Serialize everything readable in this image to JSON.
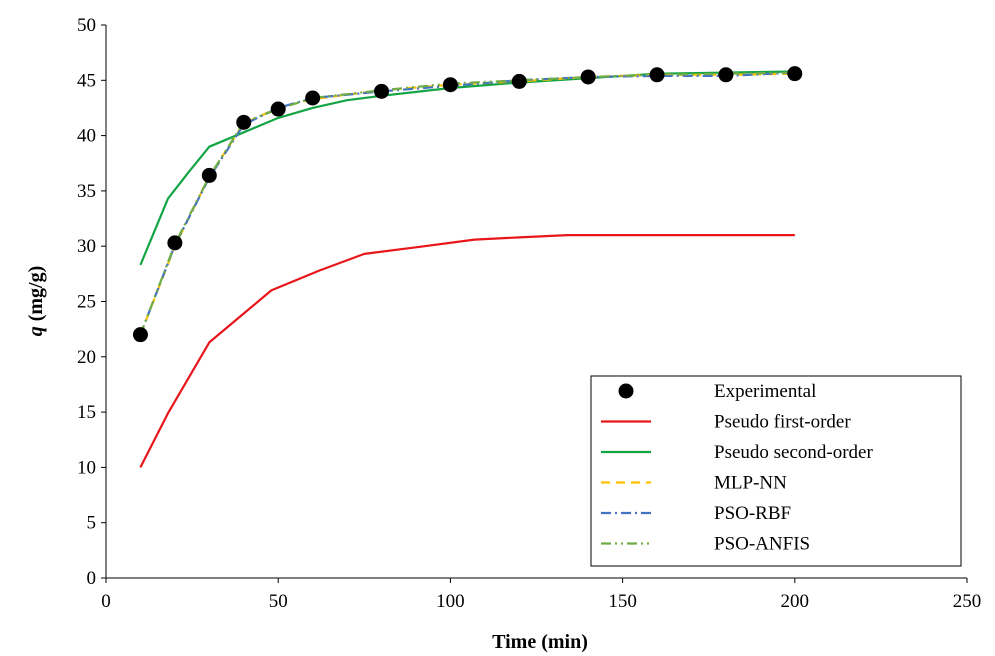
{
  "chart_data": {
    "type": "line",
    "xlabel": "Time (min)",
    "ylabel_symbol": "q",
    "ylabel_unit": " (mg/g)",
    "xlim": [
      0,
      250
    ],
    "ylim": [
      0,
      50
    ],
    "xticks": [
      0,
      50,
      100,
      150,
      200,
      250
    ],
    "yticks": [
      0,
      5,
      10,
      15,
      20,
      25,
      30,
      35,
      40,
      45,
      50
    ],
    "grid": false,
    "legend_position": "bottom-right",
    "series": [
      {
        "name": "Experimental",
        "kind": "markers",
        "color": "#000000",
        "x": [
          10,
          20,
          30,
          40,
          50,
          60,
          80,
          100,
          120,
          140,
          160,
          180,
          200
        ],
        "y": [
          22.0,
          30.3,
          36.4,
          41.2,
          42.4,
          43.4,
          44.0,
          44.6,
          44.9,
          45.3,
          45.5,
          45.5,
          45.6
        ]
      },
      {
        "name": "Pseudo first-order",
        "kind": "solid",
        "color": "#e8161b",
        "x": [
          10,
          18,
          30,
          48,
          62,
          75,
          90,
          107,
          120,
          134,
          150,
          170,
          200
        ],
        "y": [
          10.0,
          14.9,
          21.3,
          26.0,
          27.8,
          29.3,
          29.9,
          30.6,
          30.8,
          31.0,
          31.0,
          31.0,
          31.0
        ]
      },
      {
        "name": "Pseudo second-order",
        "kind": "solid",
        "color": "#13a444",
        "x": [
          10,
          18,
          24,
          30,
          40,
          50,
          60,
          70,
          80,
          100,
          120,
          140,
          160,
          180,
          200
        ],
        "y": [
          28.3,
          34.3,
          36.7,
          39.0,
          40.3,
          41.6,
          42.5,
          43.2,
          43.6,
          44.3,
          44.8,
          45.2,
          45.6,
          45.7,
          45.8
        ]
      },
      {
        "name": "MLP-NN",
        "kind": "dash",
        "color": "#ffc000",
        "x": [
          10,
          20,
          30,
          40,
          50,
          60,
          80,
          100,
          120,
          140,
          160,
          180,
          200
        ],
        "y": [
          22.0,
          30.0,
          36.3,
          41.1,
          42.5,
          43.3,
          44.1,
          44.6,
          44.9,
          45.3,
          45.5,
          45.5,
          45.6
        ]
      },
      {
        "name": "PSO-RBF",
        "kind": "dashdot",
        "color": "#4472c4",
        "x": [
          10,
          20,
          30,
          40,
          50,
          60,
          80,
          100,
          120,
          140,
          160,
          180,
          200
        ],
        "y": [
          22.0,
          30.1,
          36.2,
          41.0,
          42.5,
          43.4,
          44.0,
          44.5,
          45.0,
          45.3,
          45.4,
          45.4,
          45.7
        ]
      },
      {
        "name": "PSO-ANFIS",
        "kind": "dashdotdot",
        "color": "#70ad47",
        "x": [
          10,
          20,
          30,
          40,
          50,
          60,
          80,
          100,
          120,
          140,
          160,
          180,
          200
        ],
        "y": [
          22.0,
          30.2,
          36.3,
          41.2,
          42.4,
          43.4,
          44.1,
          44.7,
          45.0,
          45.3,
          45.5,
          45.6,
          45.7
        ]
      }
    ]
  }
}
